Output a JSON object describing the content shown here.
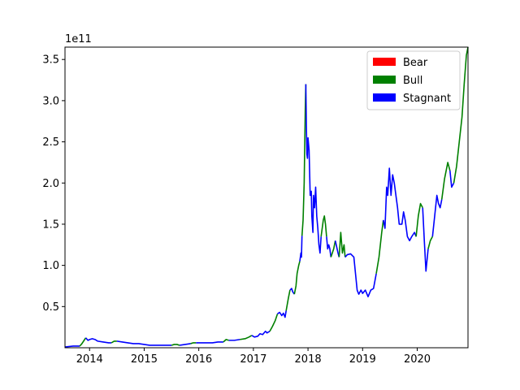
{
  "chart_data": {
    "type": "line",
    "title": "",
    "xlabel": "",
    "ylabel": "",
    "y_offset_label": "1e11",
    "xlim": [
      2013.55,
      2020.93
    ],
    "ylim": [
      0.0,
      3.65
    ],
    "x_ticks": [
      {
        "value": 2014,
        "label": "2014"
      },
      {
        "value": 2015,
        "label": "2015"
      },
      {
        "value": 2016,
        "label": "2016"
      },
      {
        "value": 2017,
        "label": "2017"
      },
      {
        "value": 2018,
        "label": "2018"
      },
      {
        "value": 2019,
        "label": "2019"
      },
      {
        "value": 2020,
        "label": "2020"
      }
    ],
    "y_ticks": [
      {
        "value": 0.5,
        "label": "0.5"
      },
      {
        "value": 1.0,
        "label": "1.0"
      },
      {
        "value": 1.5,
        "label": "1.5"
      },
      {
        "value": 2.0,
        "label": "2.0"
      },
      {
        "value": 2.5,
        "label": "2.5"
      },
      {
        "value": 3.0,
        "label": "3.0"
      },
      {
        "value": 3.5,
        "label": "3.5"
      }
    ],
    "grid": false,
    "legend": {
      "placement": "top-right",
      "entries": [
        {
          "name": "Bear",
          "color": "#ff0000"
        },
        {
          "name": "Bull",
          "color": "#008000"
        },
        {
          "name": "Stagnant",
          "color": "#0000ff"
        }
      ]
    },
    "series": [
      {
        "name": "Stagnant",
        "color": "#0000ff",
        "points": [
          [
            2013.55,
            0.01
          ],
          [
            2013.7,
            0.02
          ],
          [
            2013.82,
            0.02
          ]
        ]
      },
      {
        "name": "Bull",
        "color": "#008000",
        "points": [
          [
            2013.82,
            0.02
          ],
          [
            2013.86,
            0.05
          ],
          [
            2013.9,
            0.09
          ],
          [
            2013.93,
            0.12
          ]
        ]
      },
      {
        "name": "Stagnant",
        "color": "#0000ff",
        "points": [
          [
            2013.93,
            0.12
          ],
          [
            2013.97,
            0.09
          ],
          [
            2014.0,
            0.1
          ],
          [
            2014.05,
            0.11
          ],
          [
            2014.1,
            0.1
          ],
          [
            2014.15,
            0.08
          ],
          [
            2014.25,
            0.07
          ],
          [
            2014.35,
            0.06
          ],
          [
            2014.4,
            0.06
          ]
        ]
      },
      {
        "name": "Bull",
        "color": "#008000",
        "points": [
          [
            2014.4,
            0.06
          ],
          [
            2014.45,
            0.08
          ],
          [
            2014.5,
            0.08
          ]
        ]
      },
      {
        "name": "Stagnant",
        "color": "#0000ff",
        "points": [
          [
            2014.5,
            0.08
          ],
          [
            2014.6,
            0.07
          ],
          [
            2014.7,
            0.06
          ],
          [
            2014.8,
            0.05
          ],
          [
            2014.9,
            0.05
          ],
          [
            2015.0,
            0.04
          ],
          [
            2015.1,
            0.03
          ],
          [
            2015.2,
            0.03
          ],
          [
            2015.3,
            0.03
          ],
          [
            2015.4,
            0.03
          ],
          [
            2015.5,
            0.03
          ]
        ]
      },
      {
        "name": "Bull",
        "color": "#008000",
        "points": [
          [
            2015.5,
            0.03
          ],
          [
            2015.55,
            0.04
          ],
          [
            2015.6,
            0.04
          ],
          [
            2015.65,
            0.03
          ]
        ]
      },
      {
        "name": "Stagnant",
        "color": "#0000ff",
        "points": [
          [
            2015.65,
            0.03
          ],
          [
            2015.75,
            0.04
          ],
          [
            2015.85,
            0.05
          ]
        ]
      },
      {
        "name": "Bull",
        "color": "#008000",
        "points": [
          [
            2015.85,
            0.05
          ],
          [
            2015.9,
            0.06
          ],
          [
            2015.95,
            0.06
          ]
        ]
      },
      {
        "name": "Stagnant",
        "color": "#0000ff",
        "points": [
          [
            2015.95,
            0.06
          ],
          [
            2016.05,
            0.06
          ],
          [
            2016.15,
            0.06
          ],
          [
            2016.25,
            0.06
          ],
          [
            2016.35,
            0.07
          ],
          [
            2016.45,
            0.07
          ]
        ]
      },
      {
        "name": "Bull",
        "color": "#008000",
        "points": [
          [
            2016.45,
            0.07
          ],
          [
            2016.5,
            0.1
          ],
          [
            2016.55,
            0.09
          ]
        ]
      },
      {
        "name": "Stagnant",
        "color": "#0000ff",
        "points": [
          [
            2016.55,
            0.09
          ],
          [
            2016.65,
            0.09
          ],
          [
            2016.75,
            0.1
          ]
        ]
      },
      {
        "name": "Bull",
        "color": "#008000",
        "points": [
          [
            2016.75,
            0.1
          ],
          [
            2016.85,
            0.11
          ],
          [
            2016.92,
            0.13
          ],
          [
            2016.97,
            0.15
          ]
        ]
      },
      {
        "name": "Stagnant",
        "color": "#0000ff",
        "points": [
          [
            2016.97,
            0.15
          ],
          [
            2017.02,
            0.13
          ],
          [
            2017.08,
            0.14
          ],
          [
            2017.12,
            0.17
          ],
          [
            2017.17,
            0.16
          ],
          [
            2017.22,
            0.2
          ],
          [
            2017.25,
            0.18
          ],
          [
            2017.3,
            0.2
          ]
        ]
      },
      {
        "name": "Bull",
        "color": "#008000",
        "points": [
          [
            2017.3,
            0.2
          ],
          [
            2017.35,
            0.26
          ],
          [
            2017.4,
            0.33
          ],
          [
            2017.44,
            0.41
          ]
        ]
      },
      {
        "name": "Stagnant",
        "color": "#0000ff",
        "points": [
          [
            2017.44,
            0.41
          ],
          [
            2017.48,
            0.43
          ],
          [
            2017.52,
            0.39
          ],
          [
            2017.55,
            0.42
          ],
          [
            2017.58,
            0.37
          ],
          [
            2017.6,
            0.45
          ]
        ]
      },
      {
        "name": "Bull",
        "color": "#008000",
        "points": [
          [
            2017.6,
            0.45
          ],
          [
            2017.64,
            0.6
          ],
          [
            2017.67,
            0.7
          ]
        ]
      },
      {
        "name": "Stagnant",
        "color": "#0000ff",
        "points": [
          [
            2017.67,
            0.7
          ],
          [
            2017.7,
            0.72
          ],
          [
            2017.72,
            0.68
          ],
          [
            2017.75,
            0.65
          ]
        ]
      },
      {
        "name": "Bull",
        "color": "#008000",
        "points": [
          [
            2017.75,
            0.65
          ],
          [
            2017.78,
            0.75
          ],
          [
            2017.8,
            0.9
          ],
          [
            2017.83,
            1.0
          ],
          [
            2017.85,
            1.05
          ]
        ]
      },
      {
        "name": "Stagnant",
        "color": "#0000ff",
        "points": [
          [
            2017.85,
            1.05
          ],
          [
            2017.87,
            1.15
          ],
          [
            2017.88,
            1.1
          ],
          [
            2017.89,
            1.36
          ]
        ]
      },
      {
        "name": "Bull",
        "color": "#008000",
        "points": [
          [
            2017.89,
            1.36
          ],
          [
            2017.91,
            1.55
          ],
          [
            2017.93,
            2.0
          ],
          [
            2017.95,
            2.9
          ],
          [
            2017.96,
            3.2
          ]
        ]
      },
      {
        "name": "Stagnant",
        "color": "#0000ff",
        "points": [
          [
            2017.96,
            3.2
          ],
          [
            2017.97,
            2.7
          ],
          [
            2017.98,
            2.35
          ],
          [
            2017.99,
            2.3
          ],
          [
            2018.0,
            2.55
          ],
          [
            2018.02,
            2.4
          ],
          [
            2018.04,
            1.85
          ],
          [
            2018.06,
            1.9
          ],
          [
            2018.07,
            1.6
          ],
          [
            2018.09,
            1.4
          ],
          [
            2018.1,
            1.85
          ],
          [
            2018.12,
            1.7
          ],
          [
            2018.14,
            1.95
          ],
          [
            2018.16,
            1.6
          ],
          [
            2018.18,
            1.45
          ],
          [
            2018.2,
            1.25
          ],
          [
            2018.22,
            1.15
          ],
          [
            2018.24,
            1.35
          ]
        ]
      },
      {
        "name": "Bull",
        "color": "#008000",
        "points": [
          [
            2018.24,
            1.35
          ],
          [
            2018.28,
            1.55
          ],
          [
            2018.3,
            1.6
          ],
          [
            2018.32,
            1.5
          ],
          [
            2018.34,
            1.35
          ]
        ]
      },
      {
        "name": "Stagnant",
        "color": "#0000ff",
        "points": [
          [
            2018.34,
            1.35
          ],
          [
            2018.36,
            1.2
          ],
          [
            2018.38,
            1.25
          ],
          [
            2018.4,
            1.2
          ],
          [
            2018.42,
            1.1
          ]
        ]
      },
      {
        "name": "Bull",
        "color": "#008000",
        "points": [
          [
            2018.42,
            1.1
          ],
          [
            2018.47,
            1.2
          ],
          [
            2018.5,
            1.3
          ]
        ]
      },
      {
        "name": "Stagnant",
        "color": "#0000ff",
        "points": [
          [
            2018.5,
            1.3
          ],
          [
            2018.55,
            1.15
          ],
          [
            2018.57,
            1.1
          ]
        ]
      },
      {
        "name": "Bull",
        "color": "#008000",
        "points": [
          [
            2018.57,
            1.1
          ],
          [
            2018.6,
            1.4
          ],
          [
            2018.63,
            1.15
          ],
          [
            2018.66,
            1.25
          ],
          [
            2018.68,
            1.1
          ]
        ]
      },
      {
        "name": "Stagnant",
        "color": "#0000ff",
        "points": [
          [
            2018.68,
            1.1
          ],
          [
            2018.72,
            1.13
          ],
          [
            2018.78,
            1.14
          ],
          [
            2018.84,
            1.1
          ],
          [
            2018.87,
            0.9
          ],
          [
            2018.9,
            0.7
          ],
          [
            2018.93,
            0.65
          ],
          [
            2018.97,
            0.7
          ],
          [
            2019.0,
            0.66
          ],
          [
            2019.05,
            0.7
          ],
          [
            2019.1,
            0.62
          ],
          [
            2019.15,
            0.7
          ],
          [
            2019.2,
            0.72
          ],
          [
            2019.25,
            0.9
          ]
        ]
      },
      {
        "name": "Bull",
        "color": "#008000",
        "points": [
          [
            2019.25,
            0.9
          ],
          [
            2019.3,
            1.1
          ],
          [
            2019.35,
            1.4
          ],
          [
            2019.38,
            1.55
          ]
        ]
      },
      {
        "name": "Stagnant",
        "color": "#0000ff",
        "points": [
          [
            2019.38,
            1.55
          ],
          [
            2019.41,
            1.45
          ],
          [
            2019.44,
            1.95
          ],
          [
            2019.46,
            1.85
          ],
          [
            2019.49,
            2.18
          ],
          [
            2019.52,
            1.85
          ],
          [
            2019.55,
            2.1
          ],
          [
            2019.58,
            2.0
          ],
          [
            2019.61,
            1.85
          ],
          [
            2019.64,
            1.7
          ],
          [
            2019.67,
            1.5
          ],
          [
            2019.72,
            1.5
          ],
          [
            2019.75,
            1.65
          ],
          [
            2019.78,
            1.55
          ],
          [
            2019.82,
            1.35
          ],
          [
            2019.86,
            1.3
          ],
          [
            2019.9,
            1.35
          ],
          [
            2019.95,
            1.4
          ],
          [
            2019.98,
            1.35
          ]
        ]
      },
      {
        "name": "Bull",
        "color": "#008000",
        "points": [
          [
            2019.98,
            1.35
          ],
          [
            2020.02,
            1.6
          ],
          [
            2020.06,
            1.75
          ],
          [
            2020.1,
            1.7
          ]
        ]
      },
      {
        "name": "Stagnant",
        "color": "#0000ff",
        "points": [
          [
            2020.1,
            1.7
          ],
          [
            2020.13,
            1.3
          ],
          [
            2020.16,
            0.93
          ],
          [
            2020.2,
            1.2
          ]
        ]
      },
      {
        "name": "Bull",
        "color": "#008000",
        "points": [
          [
            2020.2,
            1.2
          ],
          [
            2020.24,
            1.3
          ],
          [
            2020.28,
            1.35
          ]
        ]
      },
      {
        "name": "Stagnant",
        "color": "#0000ff",
        "points": [
          [
            2020.28,
            1.35
          ],
          [
            2020.32,
            1.6
          ],
          [
            2020.36,
            1.85
          ],
          [
            2020.39,
            1.75
          ],
          [
            2020.42,
            1.7
          ],
          [
            2020.45,
            1.8
          ]
        ]
      },
      {
        "name": "Bull",
        "color": "#008000",
        "points": [
          [
            2020.45,
            1.8
          ],
          [
            2020.5,
            2.05
          ],
          [
            2020.56,
            2.25
          ],
          [
            2020.6,
            2.15
          ]
        ]
      },
      {
        "name": "Stagnant",
        "color": "#0000ff",
        "points": [
          [
            2020.6,
            2.15
          ],
          [
            2020.63,
            1.95
          ],
          [
            2020.67,
            2.0
          ]
        ]
      },
      {
        "name": "Bull",
        "color": "#008000",
        "points": [
          [
            2020.67,
            2.0
          ],
          [
            2020.72,
            2.2
          ],
          [
            2020.77,
            2.5
          ],
          [
            2020.82,
            2.8
          ],
          [
            2020.86,
            3.2
          ],
          [
            2020.9,
            3.55
          ],
          [
            2020.93,
            3.65
          ]
        ]
      }
    ]
  }
}
